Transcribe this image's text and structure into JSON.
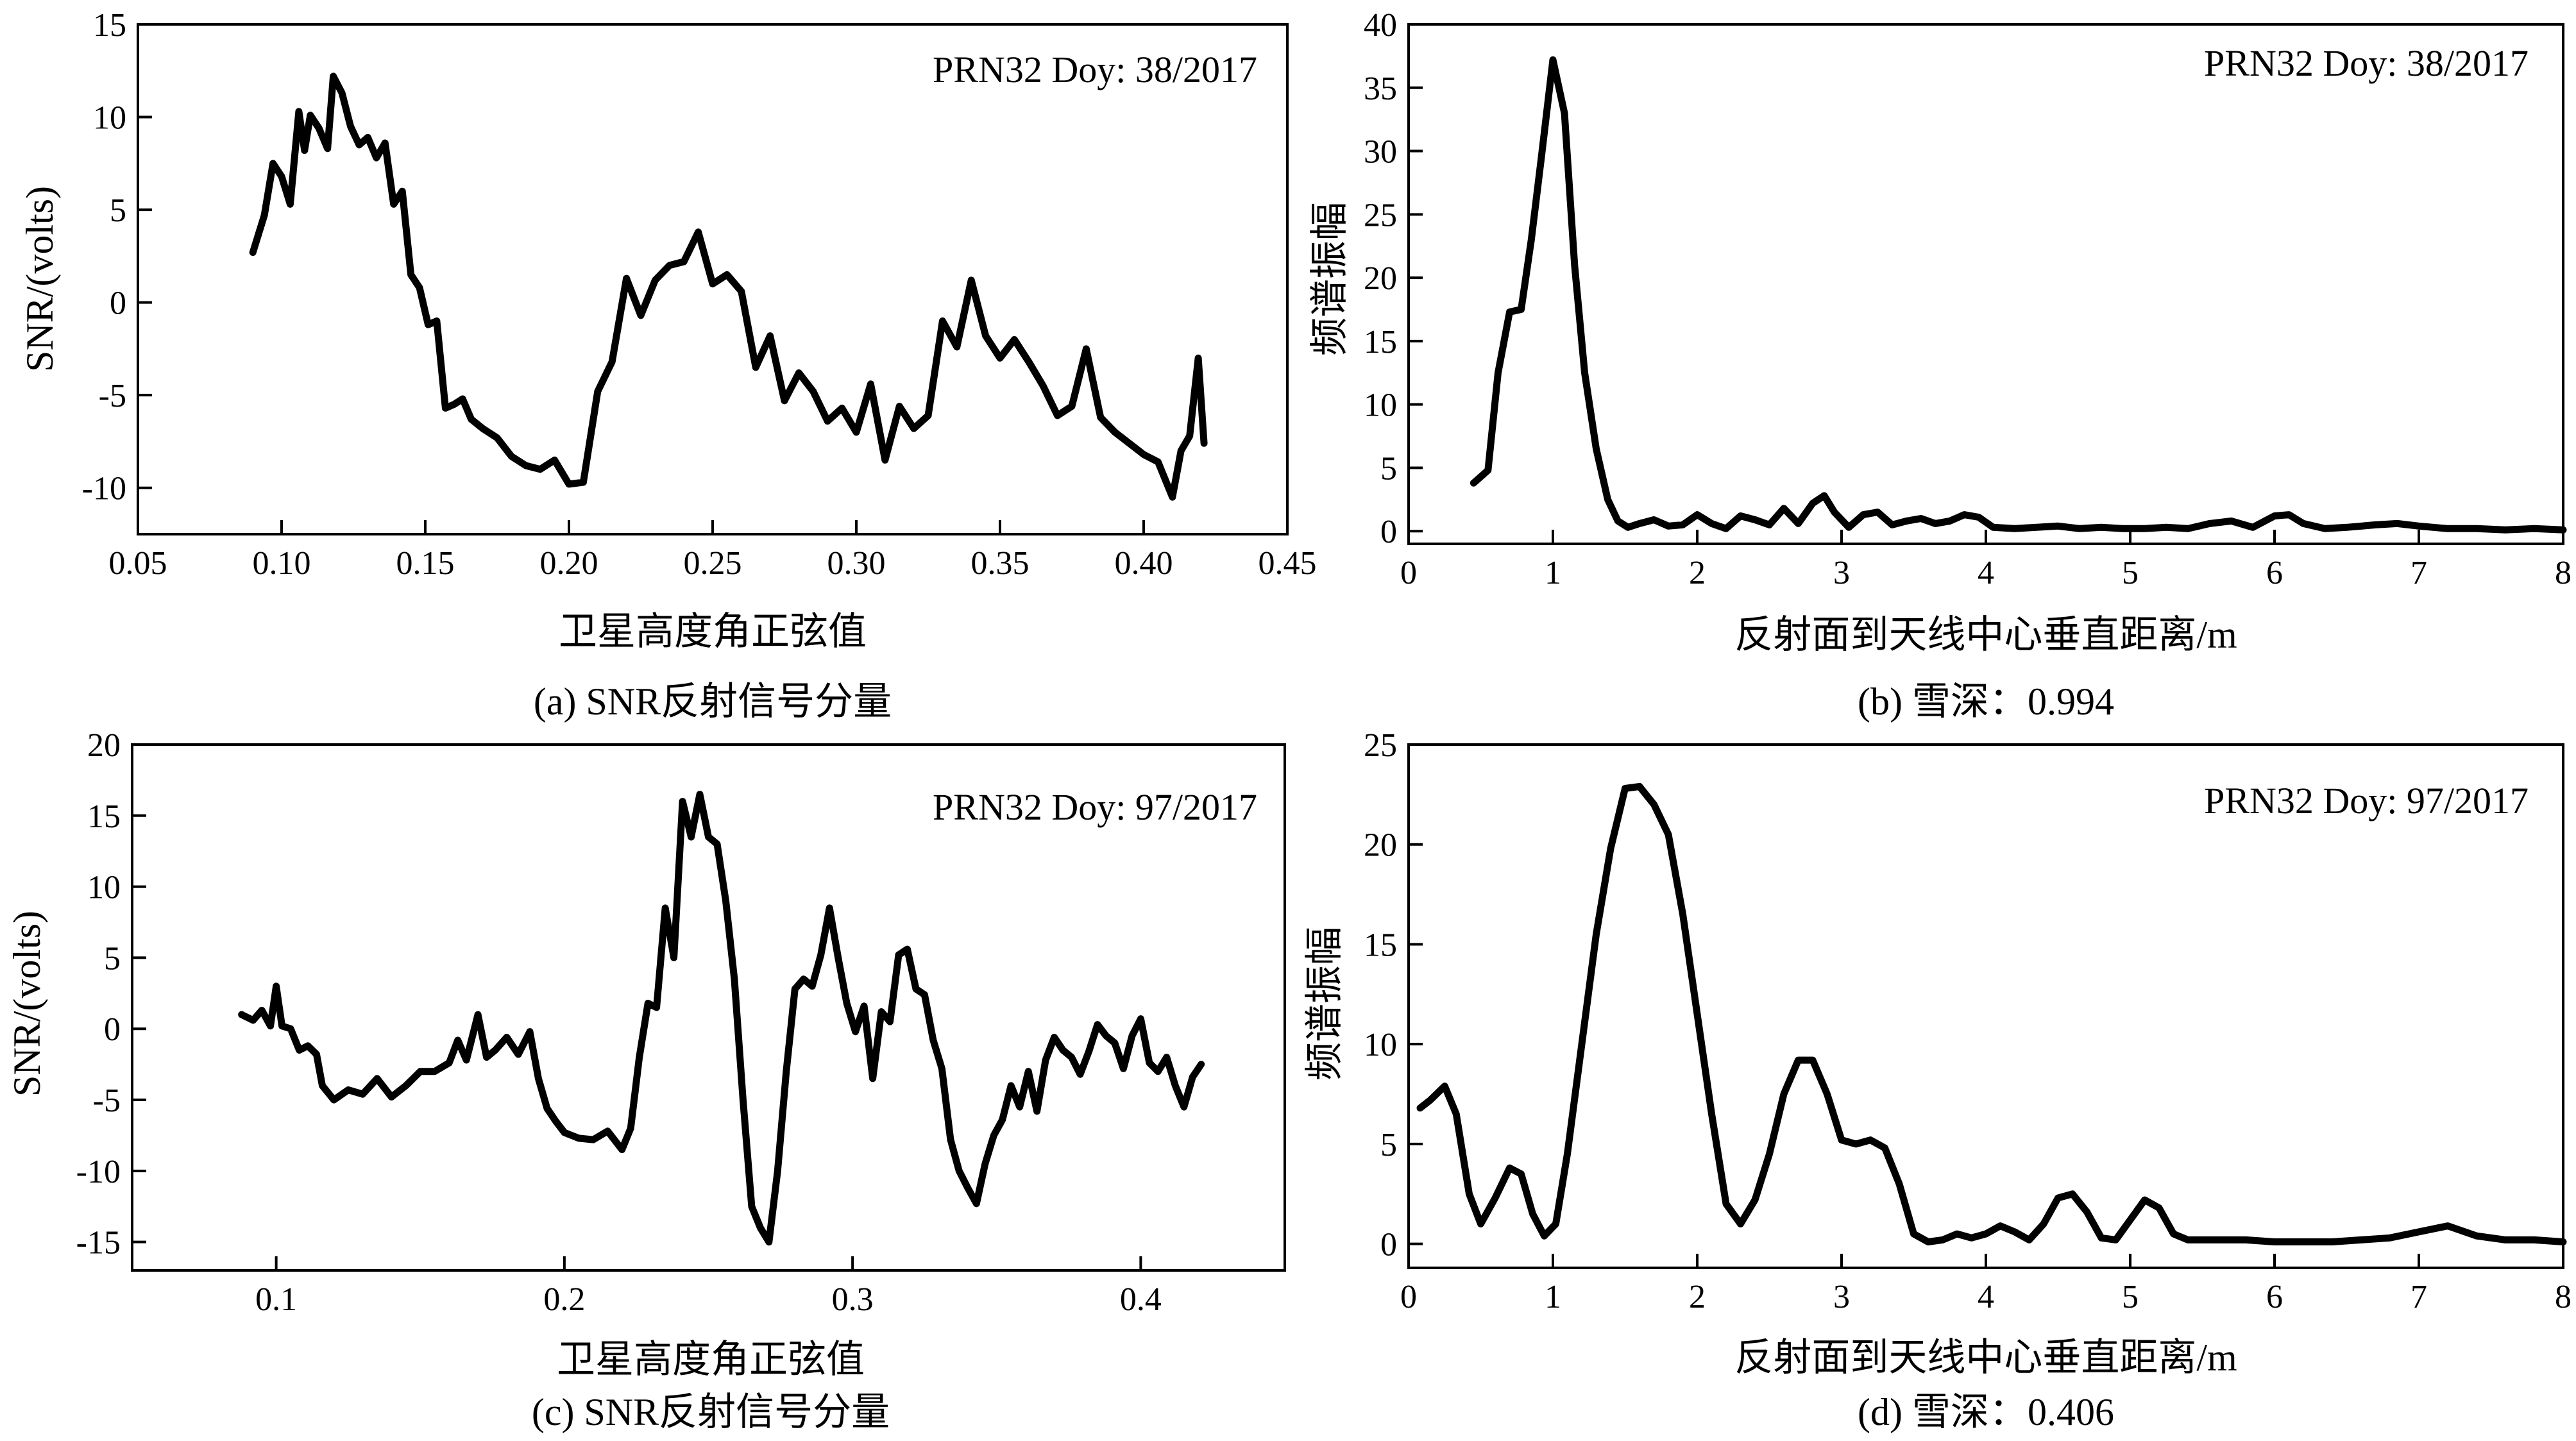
{
  "chart_data": [
    {
      "id": "a",
      "type": "line",
      "caption": "(a) SNR反射信号分量",
      "annotation": "PRN32  Doy: 38/2017",
      "xlabel": "卫星高度角正弦值",
      "ylabel": "SNR/(volts)",
      "xlim": [
        0.05,
        0.45
      ],
      "ylim": [
        -12.5,
        15
      ],
      "xticks": [
        0.05,
        0.1,
        0.15,
        0.2,
        0.25,
        0.3,
        0.35,
        0.4,
        0.45
      ],
      "xtick_labels": [
        "0.05",
        "0.10",
        "0.15",
        "0.20",
        "0.25",
        "0.30",
        "0.35",
        "0.40",
        "0.45"
      ],
      "yticks": [
        -10,
        -5,
        0,
        5,
        10,
        15
      ],
      "ytick_labels": [
        "-10",
        "-5",
        "0",
        "5",
        "10",
        "15"
      ],
      "x": [
        0.09,
        0.094,
        0.097,
        0.1,
        0.103,
        0.106,
        0.108,
        0.11,
        0.113,
        0.116,
        0.118,
        0.121,
        0.124,
        0.127,
        0.13,
        0.133,
        0.136,
        0.139,
        0.142,
        0.145,
        0.148,
        0.151,
        0.154,
        0.157,
        0.16,
        0.163,
        0.166,
        0.17,
        0.175,
        0.18,
        0.185,
        0.19,
        0.195,
        0.2,
        0.205,
        0.21,
        0.215,
        0.22,
        0.225,
        0.23,
        0.235,
        0.24,
        0.245,
        0.25,
        0.255,
        0.26,
        0.265,
        0.27,
        0.275,
        0.28,
        0.285,
        0.29,
        0.295,
        0.3,
        0.305,
        0.31,
        0.315,
        0.32,
        0.325,
        0.33,
        0.335,
        0.34,
        0.345,
        0.35,
        0.355,
        0.36,
        0.365,
        0.37,
        0.375,
        0.38,
        0.385,
        0.39,
        0.395,
        0.4,
        0.405,
        0.41,
        0.413,
        0.416,
        0.419,
        0.421
      ],
      "y": [
        2.7,
        4.7,
        7.5,
        6.8,
        5.3,
        10.3,
        8.2,
        10.1,
        9.4,
        8.3,
        12.2,
        11.3,
        9.5,
        8.5,
        8.9,
        7.8,
        8.6,
        5.3,
        6.0,
        1.5,
        0.8,
        -1.2,
        -1.0,
        -5.7,
        -5.5,
        -5.2,
        -6.3,
        -6.8,
        -7.3,
        -8.3,
        -8.8,
        -9.0,
        -8.5,
        -9.8,
        -9.7,
        -4.8,
        -3.2,
        1.3,
        -0.7,
        1.2,
        2.0,
        2.2,
        3.8,
        1.0,
        1.5,
        0.6,
        -3.5,
        -1.8,
        -5.3,
        -3.8,
        -4.8,
        -6.4,
        -5.7,
        -7.0,
        -4.4,
        -8.5,
        -5.6,
        -6.8,
        -6.1,
        -1.0,
        -2.4,
        1.2,
        -1.8,
        -3.0,
        -2.0,
        -3.2,
        -4.5,
        -6.1,
        -5.6,
        -2.5,
        -6.2,
        -7.0,
        -7.6,
        -8.2,
        -8.6,
        -10.5,
        -8.0,
        -7.2,
        -3.0,
        -7.6
      ]
    },
    {
      "id": "b",
      "type": "line",
      "caption": "(b) 雪深：0.994",
      "annotation": "PRN32  Doy: 38/2017",
      "xlabel": "反射面到天线中心垂直距离/m",
      "ylabel": "频谱振幅",
      "xlim": [
        0,
        8
      ],
      "ylim": [
        -1,
        40
      ],
      "xticks": [
        0,
        1,
        2,
        3,
        4,
        5,
        6,
        7,
        8
      ],
      "xtick_labels": [
        "0",
        "1",
        "2",
        "3",
        "4",
        "5",
        "6",
        "7",
        "8"
      ],
      "yticks": [
        0,
        5,
        10,
        15,
        20,
        25,
        30,
        35,
        40
      ],
      "ytick_labels": [
        "0",
        "5",
        "10",
        "15",
        "20",
        "25",
        "30",
        "35",
        "40"
      ],
      "x": [
        0.45,
        0.55,
        0.62,
        0.7,
        0.78,
        0.85,
        0.92,
        1.0,
        1.08,
        1.15,
        1.22,
        1.3,
        1.38,
        1.45,
        1.52,
        1.6,
        1.7,
        1.8,
        1.9,
        2.0,
        2.1,
        2.2,
        2.3,
        2.4,
        2.5,
        2.6,
        2.7,
        2.8,
        2.88,
        2.95,
        3.05,
        3.15,
        3.25,
        3.35,
        3.45,
        3.55,
        3.65,
        3.75,
        3.85,
        3.95,
        4.05,
        4.2,
        4.35,
        4.5,
        4.65,
        4.8,
        4.95,
        5.1,
        5.25,
        5.4,
        5.55,
        5.7,
        5.85,
        6.0,
        6.1,
        6.2,
        6.35,
        6.5,
        6.7,
        6.85,
        7.0,
        7.2,
        7.4,
        7.6,
        7.8,
        8.0
      ],
      "y": [
        3.8,
        4.8,
        12.5,
        17.3,
        17.5,
        23.0,
        29.5,
        37.2,
        33.0,
        21.0,
        12.5,
        6.5,
        2.5,
        0.8,
        0.3,
        0.6,
        0.9,
        0.4,
        0.5,
        1.3,
        0.6,
        0.2,
        1.2,
        0.9,
        0.5,
        1.8,
        0.6,
        2.2,
        2.8,
        1.5,
        0.3,
        1.3,
        1.5,
        0.5,
        0.8,
        1.0,
        0.6,
        0.8,
        1.3,
        1.1,
        0.3,
        0.2,
        0.3,
        0.4,
        0.2,
        0.3,
        0.2,
        0.2,
        0.3,
        0.2,
        0.6,
        0.8,
        0.3,
        1.2,
        1.3,
        0.6,
        0.2,
        0.3,
        0.5,
        0.6,
        0.4,
        0.2,
        0.2,
        0.1,
        0.2,
        0.1
      ]
    },
    {
      "id": "c",
      "type": "line",
      "caption": "(c) SNR反射信号分量",
      "annotation": "PRN32  Doy: 97/2017",
      "xlabel": "卫星高度角正弦值",
      "ylabel": "SNR/(volts)",
      "xlim": [
        0.05,
        0.45
      ],
      "ylim": [
        -17,
        20
      ],
      "xticks": [
        0.1,
        0.2,
        0.3,
        0.4
      ],
      "xtick_labels": [
        "0.1",
        "0.2",
        "0.3",
        "0.4"
      ],
      "yticks": [
        -15,
        -10,
        -5,
        0,
        5,
        10,
        15,
        20
      ],
      "ytick_labels": [
        "-15",
        "-10",
        "-5",
        "0",
        "5",
        "10",
        "15",
        "20"
      ],
      "x": [
        0.088,
        0.092,
        0.095,
        0.098,
        0.1,
        0.102,
        0.105,
        0.108,
        0.111,
        0.114,
        0.116,
        0.12,
        0.125,
        0.13,
        0.135,
        0.14,
        0.145,
        0.15,
        0.155,
        0.16,
        0.163,
        0.166,
        0.17,
        0.173,
        0.176,
        0.18,
        0.184,
        0.188,
        0.191,
        0.194,
        0.197,
        0.2,
        0.205,
        0.21,
        0.215,
        0.22,
        0.223,
        0.226,
        0.229,
        0.232,
        0.235,
        0.238,
        0.241,
        0.244,
        0.247,
        0.25,
        0.253,
        0.256,
        0.259,
        0.262,
        0.265,
        0.268,
        0.271,
        0.274,
        0.277,
        0.28,
        0.283,
        0.286,
        0.289,
        0.292,
        0.295,
        0.298,
        0.301,
        0.304,
        0.307,
        0.31,
        0.313,
        0.316,
        0.319,
        0.322,
        0.325,
        0.328,
        0.331,
        0.334,
        0.337,
        0.34,
        0.343,
        0.346,
        0.349,
        0.352,
        0.355,
        0.358,
        0.361,
        0.364,
        0.367,
        0.37,
        0.373,
        0.376,
        0.379,
        0.382,
        0.385,
        0.388,
        0.391,
        0.394,
        0.397,
        0.4,
        0.403,
        0.406,
        0.409,
        0.412,
        0.415,
        0.418,
        0.421
      ],
      "y": [
        1.0,
        0.6,
        1.3,
        0.2,
        3.0,
        0.2,
        0.0,
        -1.5,
        -1.2,
        -1.8,
        -4.0,
        -5.0,
        -4.3,
        -4.6,
        -3.5,
        -4.8,
        -4.0,
        -3.0,
        -3.0,
        -2.4,
        -0.8,
        -2.2,
        1.0,
        -2.0,
        -1.5,
        -0.6,
        -1.8,
        -0.2,
        -3.5,
        -5.6,
        -6.5,
        -7.3,
        -7.7,
        -7.8,
        -7.2,
        -8.5,
        -7.0,
        -2.0,
        1.8,
        1.5,
        8.5,
        5.0,
        16.0,
        13.5,
        16.5,
        13.5,
        13.0,
        9.0,
        3.5,
        -5.0,
        -12.5,
        -14.0,
        -15.0,
        -10.0,
        -3.0,
        2.8,
        3.5,
        3.0,
        5.2,
        8.5,
        5.0,
        1.8,
        -0.2,
        1.6,
        -3.5,
        1.2,
        0.5,
        5.2,
        5.6,
        2.8,
        2.4,
        -0.8,
        -2.8,
        -7.8,
        -10.0,
        -11.2,
        -12.3,
        -9.5,
        -7.5,
        -6.4,
        -4.0,
        -5.5,
        -3.0,
        -5.8,
        -2.2,
        -0.6,
        -1.5,
        -2.0,
        -3.2,
        -1.6,
        0.3,
        -0.5,
        -1.0,
        -2.8,
        -0.5,
        0.7,
        -2.4,
        -3.0,
        -2.0,
        -4.0,
        -5.5,
        -3.4,
        -2.5
      ]
    },
    {
      "id": "d",
      "type": "line",
      "caption": "(d) 雪深：0.406",
      "annotation": "PRN32  Doy: 97/2017",
      "xlabel": "反射面到天线中心垂直距离/m",
      "ylabel": "频谱振幅",
      "xlim": [
        0,
        8
      ],
      "ylim": [
        -1.2,
        25
      ],
      "xticks": [
        0,
        1,
        2,
        3,
        4,
        5,
        6,
        7,
        8
      ],
      "xtick_labels": [
        "0",
        "1",
        "2",
        "3",
        "4",
        "5",
        "6",
        "7",
        "8"
      ],
      "yticks": [
        0,
        5,
        10,
        15,
        20,
        25
      ],
      "ytick_labels": [
        "0",
        "5",
        "10",
        "15",
        "20",
        "25"
      ],
      "x": [
        0.08,
        0.15,
        0.25,
        0.33,
        0.42,
        0.5,
        0.6,
        0.7,
        0.78,
        0.86,
        0.94,
        1.02,
        1.1,
        1.2,
        1.3,
        1.4,
        1.5,
        1.6,
        1.7,
        1.8,
        1.9,
        2.0,
        2.1,
        2.2,
        2.3,
        2.4,
        2.5,
        2.6,
        2.7,
        2.8,
        2.9,
        3.0,
        3.1,
        3.2,
        3.3,
        3.4,
        3.5,
        3.6,
        3.7,
        3.8,
        3.9,
        4.0,
        4.1,
        4.2,
        4.3,
        4.4,
        4.5,
        4.6,
        4.7,
        4.8,
        4.9,
        5.0,
        5.1,
        5.2,
        5.3,
        5.4,
        5.5,
        5.6,
        5.7,
        5.8,
        6.0,
        6.2,
        6.4,
        6.6,
        6.8,
        7.0,
        7.2,
        7.4,
        7.6,
        7.8,
        8.0
      ],
      "y": [
        6.8,
        7.2,
        7.9,
        6.5,
        2.5,
        1.0,
        2.3,
        3.8,
        3.5,
        1.5,
        0.4,
        1.0,
        4.5,
        10.0,
        15.5,
        19.8,
        22.8,
        22.9,
        22.0,
        20.5,
        16.5,
        11.5,
        6.5,
        2.0,
        1.0,
        2.2,
        4.5,
        7.5,
        9.2,
        9.2,
        7.5,
        5.2,
        5.0,
        5.2,
        4.8,
        3.0,
        0.5,
        0.1,
        0.2,
        0.5,
        0.3,
        0.5,
        0.9,
        0.6,
        0.2,
        1.0,
        2.3,
        2.5,
        1.6,
        0.3,
        0.2,
        1.2,
        2.2,
        1.8,
        0.5,
        0.2,
        0.2,
        0.2,
        0.2,
        0.2,
        0.1,
        0.1,
        0.1,
        0.2,
        0.3,
        0.6,
        0.9,
        0.4,
        0.2,
        0.2,
        0.1
      ]
    }
  ]
}
